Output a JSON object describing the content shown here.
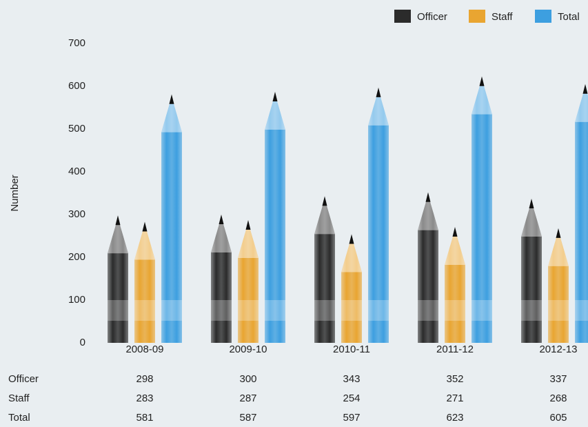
{
  "chart_data": {
    "type": "bar",
    "y_label": "Number",
    "categories": [
      "2008-09",
      "2009-10",
      "2010-11",
      "2011-12",
      "2012-13"
    ],
    "series": [
      {
        "name": "Officer",
        "color": "#2b2b2b",
        "values": [
          298,
          300,
          343,
          352,
          337
        ]
      },
      {
        "name": "Staff",
        "color": "#e9a531",
        "values": [
          283,
          287,
          254,
          271,
          268
        ]
      },
      {
        "name": "Total",
        "color": "#3d9fe0",
        "values": [
          581,
          587,
          597,
          623,
          605
        ]
      }
    ],
    "ylim": [
      0,
      700
    ],
    "yticks": [
      0,
      100,
      200,
      300,
      400,
      500,
      600,
      700
    ],
    "legend": "top-right",
    "grid": false
  }
}
